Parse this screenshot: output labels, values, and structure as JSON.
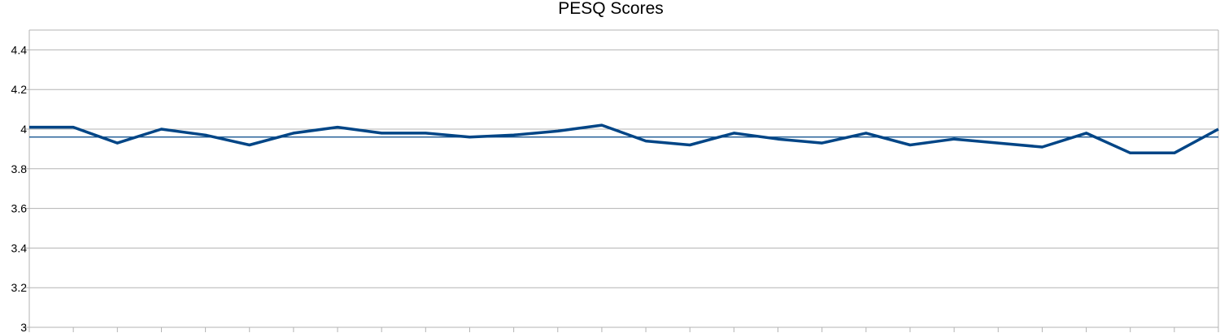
{
  "chart_data": {
    "type": "line",
    "title": "PESQ Scores",
    "xlabel": "",
    "ylabel": "",
    "ylim": [
      3,
      4.5
    ],
    "yticks": [
      "3",
      "3.2",
      "3.4",
      "3.6",
      "3.8",
      "4",
      "4.2",
      "4.4"
    ],
    "grid": true,
    "legend": "none",
    "x": [
      1,
      2,
      3,
      4,
      5,
      6,
      7,
      8,
      9,
      10,
      11,
      12,
      13,
      14,
      15,
      16,
      17,
      18,
      19,
      20,
      21,
      22,
      23,
      24,
      25,
      26,
      27,
      28
    ],
    "series": [
      {
        "values": [
          4.01,
          4.01,
          3.93,
          4.0,
          3.97,
          3.92,
          3.98,
          4.01,
          3.98,
          3.98,
          3.96,
          3.97,
          3.99,
          4.02,
          3.94,
          3.92,
          3.98,
          3.95,
          3.93,
          3.98,
          3.92,
          3.95,
          3.93,
          3.91,
          3.98,
          3.88,
          3.88,
          4.0
        ],
        "color": "#004586"
      }
    ],
    "reference_line": {
      "value": 3.96,
      "color": "#004586"
    }
  }
}
